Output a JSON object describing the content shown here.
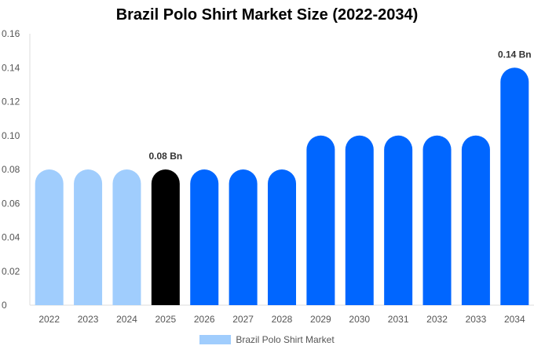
{
  "chart_data": {
    "type": "bar",
    "title": "Brazil Polo Shirt Market Size (2022-2034)",
    "categories": [
      "2022",
      "2023",
      "2024",
      "2025",
      "2026",
      "2027",
      "2028",
      "2029",
      "2030",
      "2031",
      "2032",
      "2033",
      "2034"
    ],
    "series": [
      {
        "name": "Brazil Polo Shirt Market",
        "values": [
          0.08,
          0.08,
          0.08,
          0.08,
          0.08,
          0.08,
          0.08,
          0.1,
          0.1,
          0.1,
          0.1,
          0.1,
          0.14
        ]
      }
    ],
    "bar_colors": [
      "#a0cdfd",
      "#a0cdfd",
      "#a0cdfd",
      "#000000",
      "#0066ff",
      "#0066ff",
      "#0066ff",
      "#0066ff",
      "#0066ff",
      "#0066ff",
      "#0066ff",
      "#0066ff",
      "#0066ff"
    ],
    "data_labels": {
      "3": "0.08 Bn",
      "12": "0.14 Bn"
    },
    "yticks": [
      "0",
      "0.02",
      "0.04",
      "0.06",
      "0.08",
      "0.10",
      "0.12",
      "0.14",
      "0.16"
    ],
    "ylim": [
      0,
      0.16
    ],
    "xlabel": "",
    "ylabel": "",
    "grid": false,
    "legend_position": "bottom-center",
    "legend_color": "#a0cdfd"
  }
}
